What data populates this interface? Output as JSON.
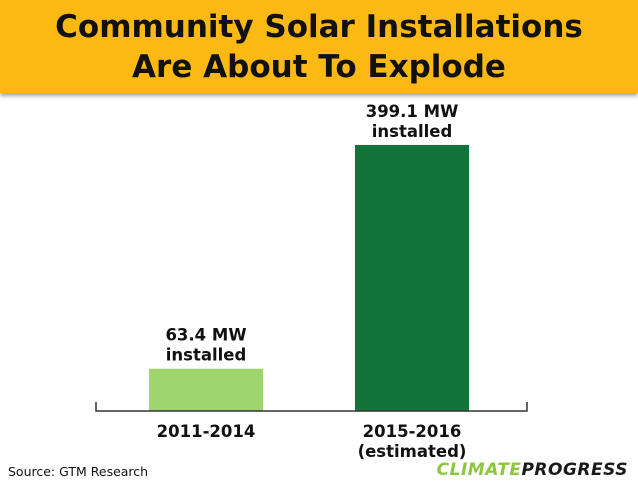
{
  "title": "Community Solar Installations Are About To Explode",
  "source": "Source: GTM Research",
  "logo": {
    "part1": "CLIMATE",
    "part2": "PROGRESS"
  },
  "colors": {
    "header_bg": "#fdb913",
    "bar1": "#9ed56f",
    "bar2": "#127439"
  },
  "chart_data": {
    "type": "bar",
    "categories": [
      "2011-2014",
      "2015-2016 (estimated)"
    ],
    "category_lines": [
      [
        "2011-2014"
      ],
      [
        "2015-2016",
        "(estimated)"
      ]
    ],
    "values": [
      63.4,
      399.1
    ],
    "unit": "MW",
    "data_labels": [
      [
        "63.4 MW",
        "installed"
      ],
      [
        "399.1 MW",
        "installed"
      ]
    ],
    "bar_colors": [
      "#9ed56f",
      "#127439"
    ],
    "title": "Community Solar Installations Are About To Explode",
    "xlabel": "",
    "ylabel": "",
    "ylim": [
      0,
      420
    ],
    "grid": false,
    "legend": "none"
  }
}
